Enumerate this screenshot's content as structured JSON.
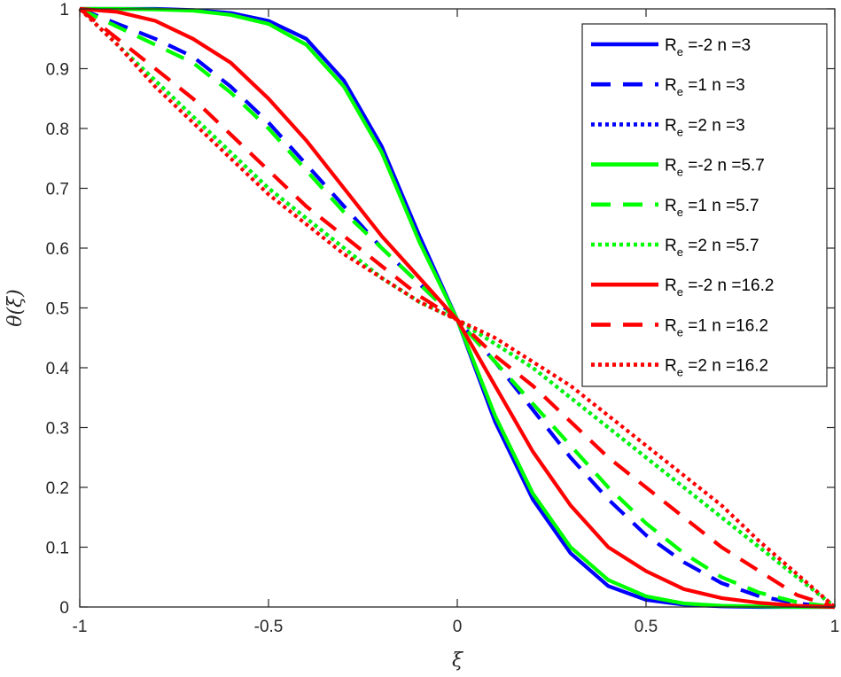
{
  "chart_data": {
    "type": "line",
    "title": "",
    "xlabel": "ξ",
    "ylabel": "θ(ξ)",
    "xlim": [
      -1,
      1
    ],
    "ylim": [
      0,
      1
    ],
    "xticks": [
      -1,
      -0.5,
      0,
      0.5,
      1
    ],
    "yticks": [
      0,
      0.1,
      0.2,
      0.3,
      0.4,
      0.5,
      0.6,
      0.7,
      0.8,
      0.9,
      1
    ],
    "xtick_labels": [
      "-1",
      "-0.5",
      "0",
      "0.5",
      "1"
    ],
    "ytick_labels": [
      "0",
      "0.1",
      "0.2",
      "0.3",
      "0.4",
      "0.5",
      "0.6",
      "0.7",
      "0.8",
      "0.9",
      "1"
    ],
    "grid": false,
    "legend_position": "top-right",
    "x": [
      -1,
      -0.9,
      -0.8,
      -0.7,
      -0.6,
      -0.5,
      -0.4,
      -0.3,
      -0.2,
      -0.1,
      0,
      0.1,
      0.2,
      0.3,
      0.4,
      0.5,
      0.6,
      0.7,
      0.8,
      0.9,
      1
    ],
    "series": [
      {
        "name": "R_e =-2  n =3",
        "legend_main": "R",
        "legend_sub": "e",
        "legend_rest": " =-2  n =3",
        "color": "#0000ff",
        "dash": "solid",
        "values": [
          1,
          1,
          1,
          0.998,
          0.993,
          0.98,
          0.95,
          0.88,
          0.77,
          0.62,
          0.48,
          0.31,
          0.18,
          0.09,
          0.035,
          0.012,
          0.004,
          0.001,
          0,
          0,
          0
        ]
      },
      {
        "name": "R_e =1  n =3",
        "legend_main": "R",
        "legend_sub": "e",
        "legend_rest": " =1  n =3",
        "color": "#0000ff",
        "dash": "dashed",
        "values": [
          1,
          0.975,
          0.95,
          0.92,
          0.87,
          0.81,
          0.74,
          0.67,
          0.6,
          0.54,
          0.48,
          0.41,
          0.33,
          0.25,
          0.18,
          0.12,
          0.075,
          0.04,
          0.018,
          0.006,
          0
        ]
      },
      {
        "name": "R_e =2  n =3",
        "legend_main": "R",
        "legend_sub": "e",
        "legend_rest": " =2  n =3",
        "color": "#0000ff",
        "dash": "dotted",
        "values": [
          1,
          0.94,
          0.88,
          0.82,
          0.76,
          0.7,
          0.65,
          0.6,
          0.55,
          0.51,
          0.48,
          0.44,
          0.4,
          0.35,
          0.3,
          0.25,
          0.2,
          0.15,
          0.1,
          0.05,
          0
        ]
      },
      {
        "name": "R_e =-2  n =5.7",
        "legend_main": "R",
        "legend_sub": "e",
        "legend_rest": " =-2  n =5.7",
        "color": "#00ff00",
        "dash": "solid",
        "values": [
          1,
          1,
          0.999,
          0.997,
          0.99,
          0.975,
          0.94,
          0.87,
          0.76,
          0.61,
          0.48,
          0.32,
          0.19,
          0.1,
          0.045,
          0.018,
          0.006,
          0.002,
          0.001,
          0,
          0
        ]
      },
      {
        "name": "R_e =1  n =5.7",
        "legend_main": "R",
        "legend_sub": "e",
        "legend_rest": " =1  n =5.7",
        "color": "#00ff00",
        "dash": "dashed",
        "values": [
          1,
          0.97,
          0.94,
          0.91,
          0.86,
          0.8,
          0.73,
          0.66,
          0.6,
          0.54,
          0.48,
          0.41,
          0.34,
          0.27,
          0.2,
          0.14,
          0.09,
          0.05,
          0.024,
          0.008,
          0
        ]
      },
      {
        "name": "R_e =2  n =5.7",
        "legend_main": "R",
        "legend_sub": "e",
        "legend_rest": " =2  n =5.7",
        "color": "#00ff00",
        "dash": "dotted",
        "values": [
          1,
          0.94,
          0.88,
          0.82,
          0.76,
          0.7,
          0.65,
          0.6,
          0.55,
          0.51,
          0.48,
          0.44,
          0.4,
          0.35,
          0.3,
          0.25,
          0.2,
          0.15,
          0.1,
          0.05,
          0
        ]
      },
      {
        "name": "R_e =-2  n =16.2",
        "legend_main": "R",
        "legend_sub": "e",
        "legend_rest": " =-2  n =16.2",
        "color": "#ff0000",
        "dash": "solid",
        "values": [
          1,
          0.995,
          0.98,
          0.95,
          0.91,
          0.85,
          0.78,
          0.7,
          0.62,
          0.55,
          0.48,
          0.37,
          0.26,
          0.17,
          0.1,
          0.06,
          0.03,
          0.015,
          0.007,
          0.002,
          0
        ]
      },
      {
        "name": "R_e =1  n =16.2",
        "legend_main": "R",
        "legend_sub": "e",
        "legend_rest": " =1  n =16.2",
        "color": "#ff0000",
        "dash": "dashed",
        "values": [
          1,
          0.95,
          0.9,
          0.85,
          0.79,
          0.73,
          0.67,
          0.62,
          0.57,
          0.52,
          0.48,
          0.42,
          0.37,
          0.31,
          0.25,
          0.2,
          0.15,
          0.1,
          0.06,
          0.02,
          0
        ]
      },
      {
        "name": "R_e =2  n =16.2",
        "legend_main": "R",
        "legend_sub": "e",
        "legend_rest": " =2  n =16.2",
        "color": "#ff0000",
        "dash": "dotted",
        "values": [
          1,
          0.94,
          0.87,
          0.81,
          0.75,
          0.69,
          0.64,
          0.59,
          0.55,
          0.51,
          0.48,
          0.45,
          0.41,
          0.37,
          0.32,
          0.27,
          0.22,
          0.17,
          0.11,
          0.055,
          0
        ]
      }
    ]
  }
}
